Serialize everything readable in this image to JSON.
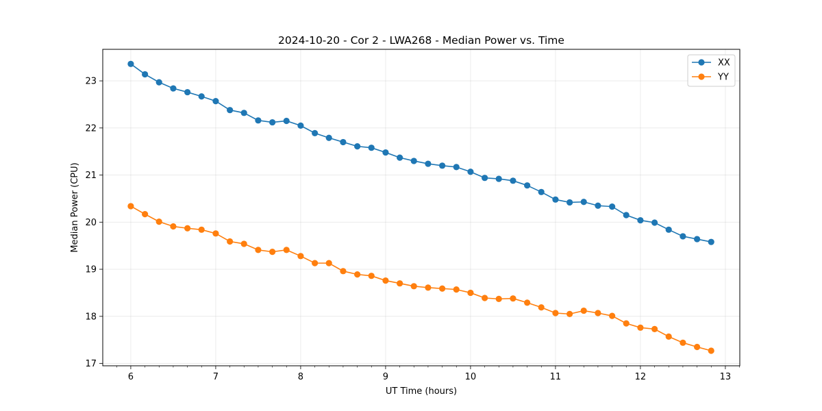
{
  "chart_data": {
    "type": "line",
    "title": "2024-10-20 - Cor 2 - LWA268 - Median Power vs. Time",
    "xlabel": "UT Time (hours)",
    "ylabel": "Median Power (CPU)",
    "xlim": [
      5.67,
      13.17
    ],
    "ylim": [
      16.95,
      23.67
    ],
    "xticks": [
      6,
      7,
      8,
      9,
      10,
      11,
      12,
      13
    ],
    "yticks": [
      17,
      18,
      19,
      20,
      21,
      22,
      23
    ],
    "grid": true,
    "legend_position": "top-right",
    "x": [
      6.0,
      6.167,
      6.333,
      6.5,
      6.667,
      6.833,
      7.0,
      7.167,
      7.333,
      7.5,
      7.667,
      7.833,
      8.0,
      8.167,
      8.333,
      8.5,
      8.667,
      8.833,
      9.0,
      9.167,
      9.333,
      9.5,
      9.667,
      9.833,
      10.0,
      10.167,
      10.333,
      10.5,
      10.667,
      10.833,
      11.0,
      11.167,
      11.333,
      11.5,
      11.667,
      11.833,
      12.0,
      12.167,
      12.333,
      12.5,
      12.667,
      12.833
    ],
    "series": [
      {
        "name": "XX",
        "color": "#1f77b4",
        "values": [
          23.36,
          23.14,
          22.97,
          22.84,
          22.76,
          22.67,
          22.57,
          22.38,
          22.32,
          22.16,
          22.12,
          22.15,
          22.05,
          21.89,
          21.79,
          21.7,
          21.61,
          21.58,
          21.48,
          21.37,
          21.3,
          21.24,
          21.2,
          21.17,
          21.07,
          20.94,
          20.92,
          20.88,
          20.78,
          20.64,
          20.48,
          20.42,
          20.43,
          20.35,
          20.33,
          20.15,
          20.04,
          19.99,
          19.84,
          19.7,
          19.64,
          19.58
        ]
      },
      {
        "name": "YY",
        "color": "#ff7f0e",
        "values": [
          20.34,
          20.17,
          20.01,
          19.91,
          19.87,
          19.84,
          19.76,
          19.59,
          19.54,
          19.41,
          19.37,
          19.41,
          19.28,
          19.13,
          19.13,
          18.96,
          18.89,
          18.86,
          18.76,
          18.7,
          18.64,
          18.61,
          18.59,
          18.57,
          18.5,
          18.39,
          18.37,
          18.38,
          18.29,
          18.19,
          18.07,
          18.05,
          18.12,
          18.07,
          18.01,
          17.85,
          17.76,
          17.73,
          17.57,
          17.44,
          17.35,
          17.27
        ]
      }
    ]
  }
}
